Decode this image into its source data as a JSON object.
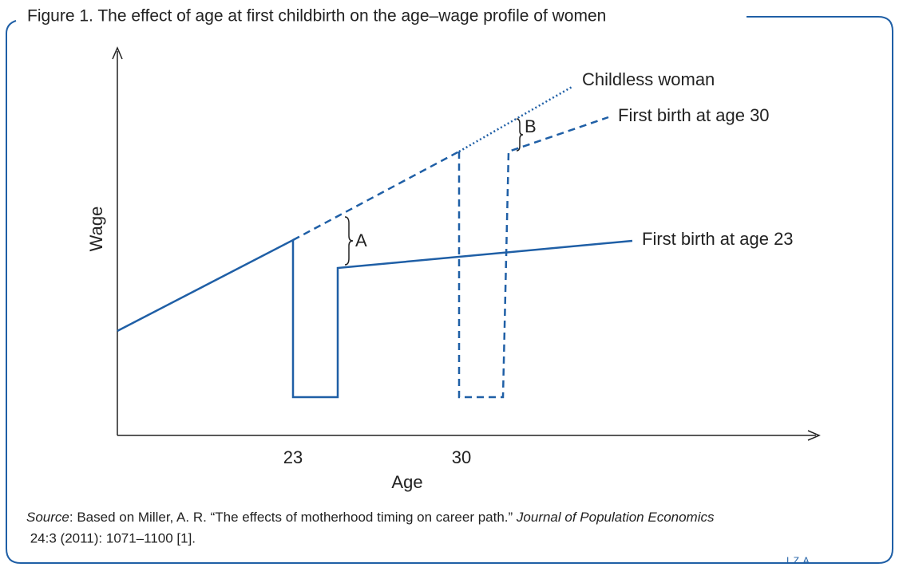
{
  "header": {
    "title": "Figure 1. The effect of age at first childbirth on the age–wage profile of women"
  },
  "axes": {
    "x_label": "Age",
    "y_label": "Wage",
    "x_ticks": [
      "23",
      "30"
    ]
  },
  "lines": {
    "childless": "Childless woman",
    "birth_30": "First birth at age 30",
    "birth_23": "First birth at age 23"
  },
  "gaps": {
    "a": "A",
    "b": "B"
  },
  "source": {
    "label": "Source",
    "text1": ": Based on Miller, A. R. “The effects of motherhood timing on career path.” ",
    "journal": "Journal of Population Economics",
    "text2": " 24:3 (2011): 1071–1100 [1]."
  },
  "footer": {
    "logo": "I Z A"
  }
}
